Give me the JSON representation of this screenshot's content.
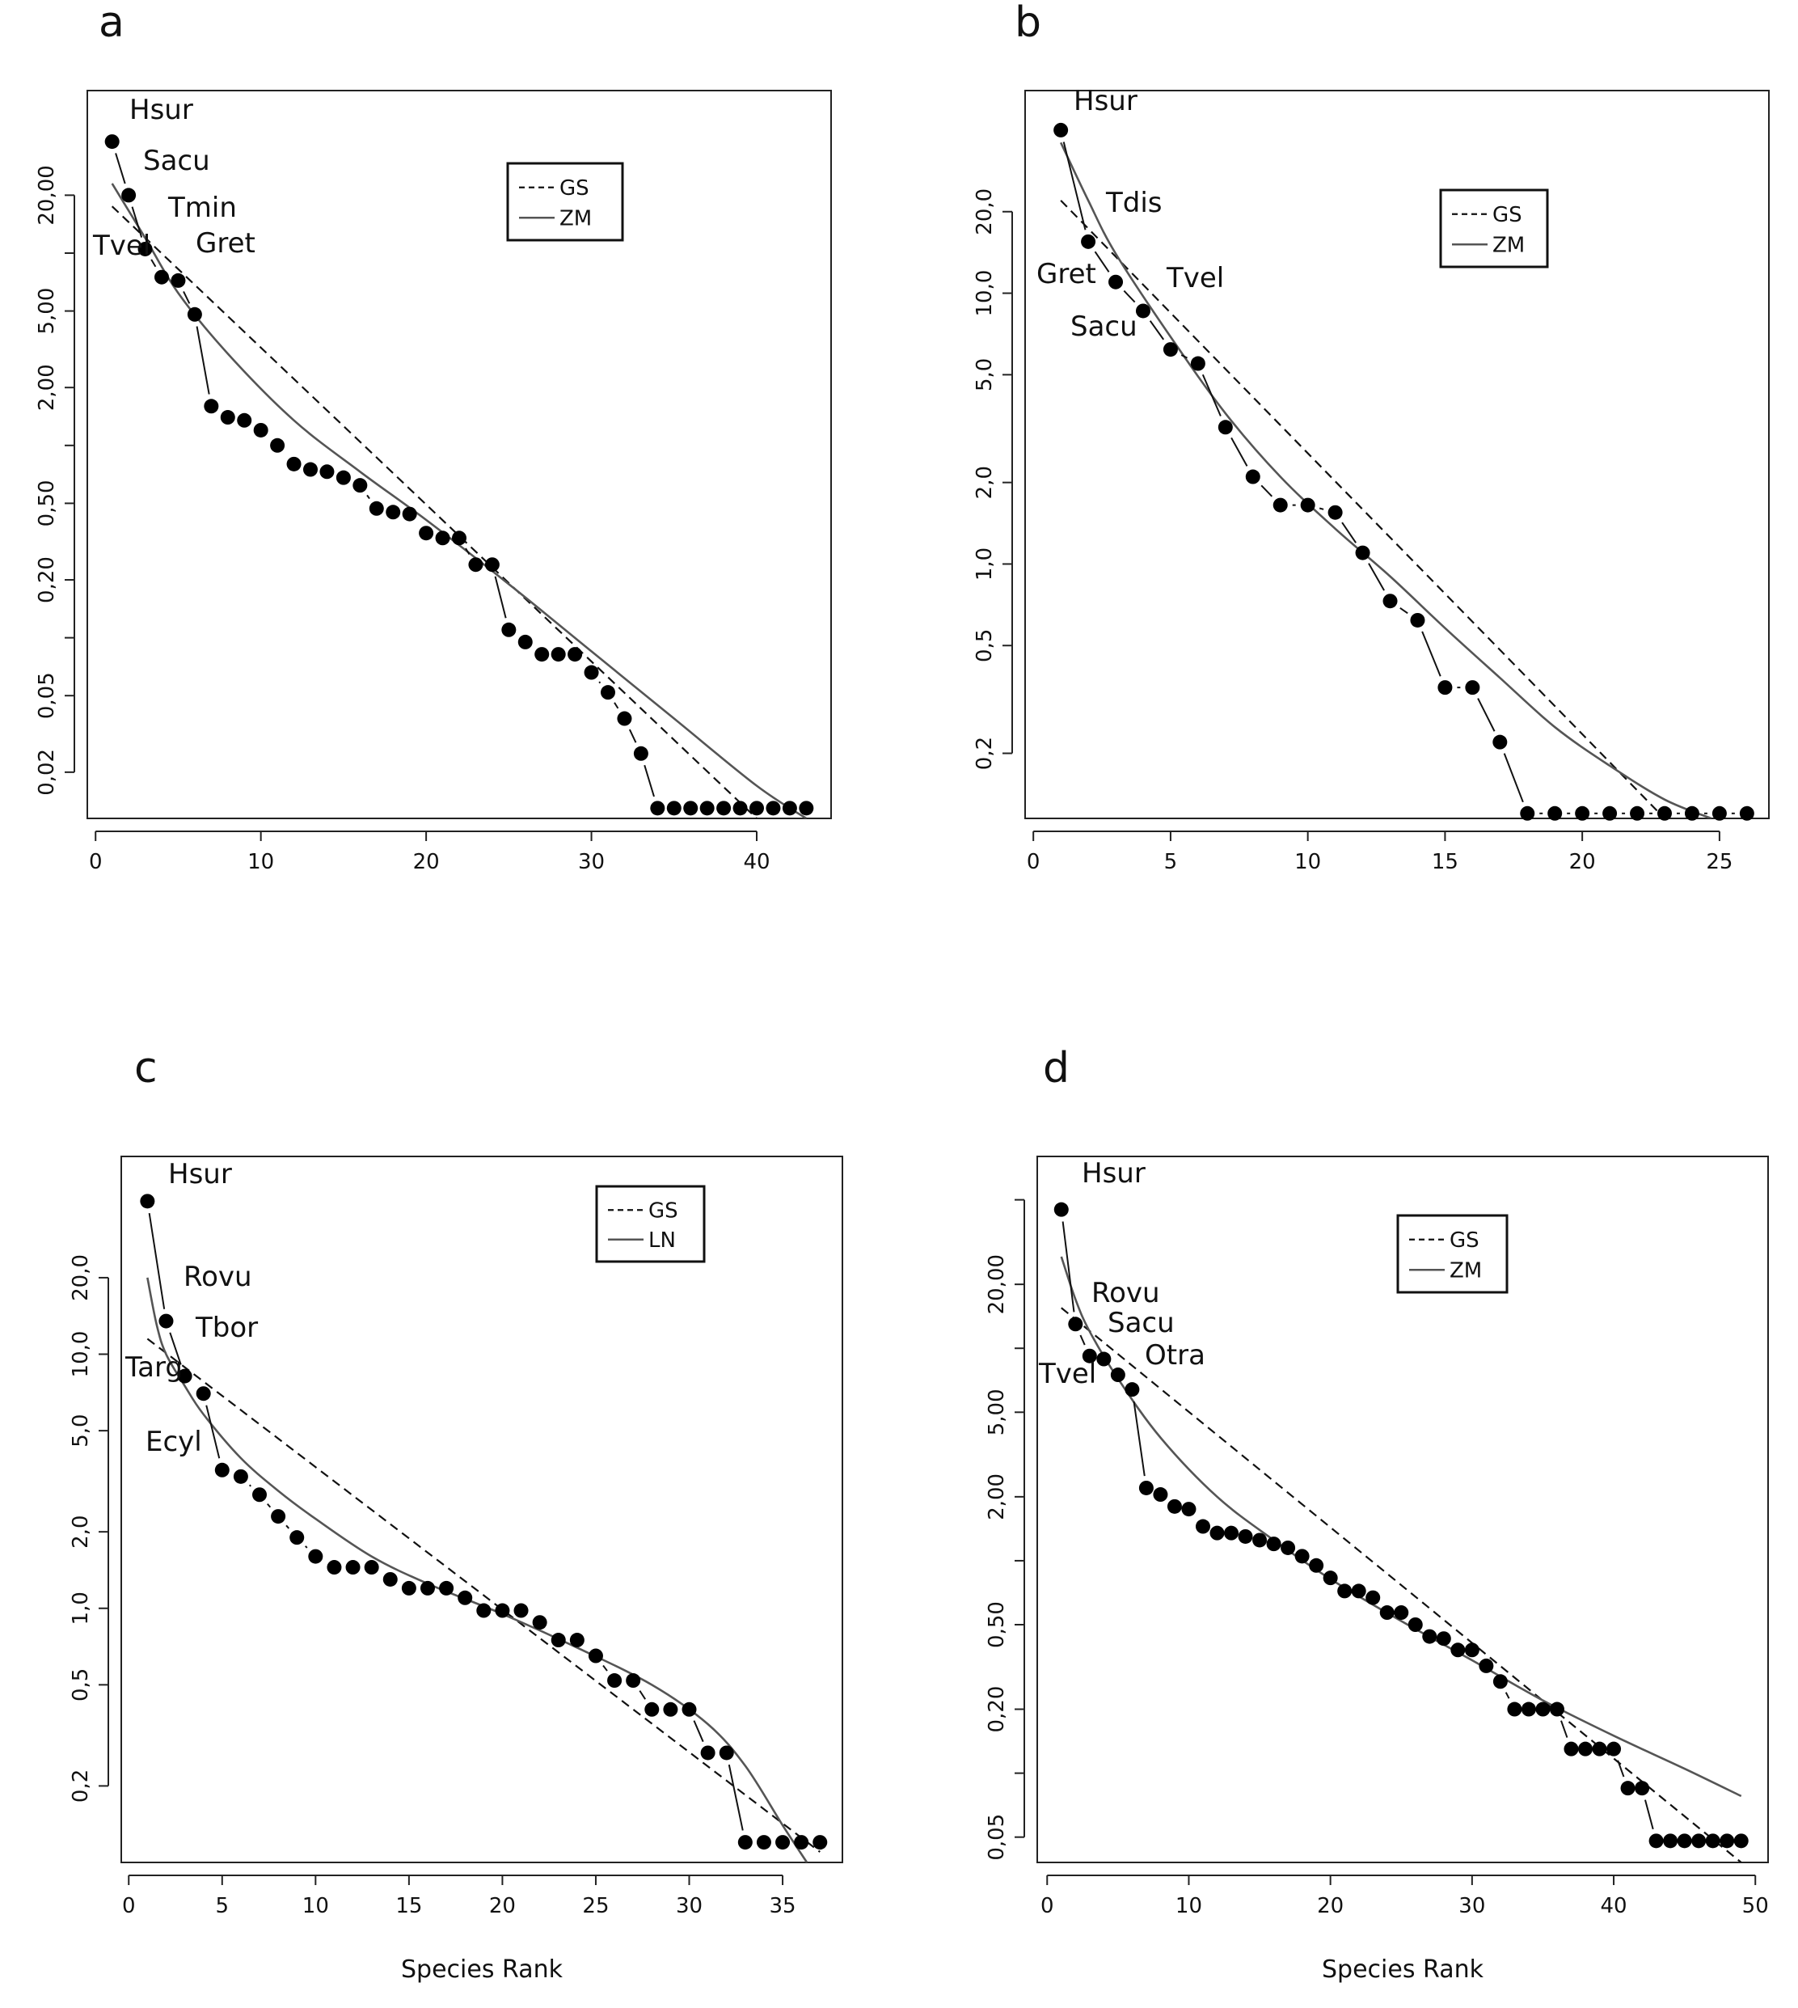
{
  "chart_data": [
    {
      "type": "scatter",
      "panel": "a",
      "xlabel": "",
      "x_ticks": [
        0,
        10,
        20,
        30,
        40
      ],
      "y_ticks": [
        "20,00",
        "5,00",
        "2,00",
        "0,50",
        "0,20",
        "0,05",
        "0,02"
      ],
      "y_tick_values": [
        20,
        5,
        2,
        0.5,
        0.2,
        0.05,
        0.02
      ],
      "y_minor_ticks": [
        10,
        1,
        0.1
      ],
      "xlim": [
        -0.5,
        44.5
      ],
      "ylim": [
        0.0115,
        70
      ],
      "y_scale": "log",
      "legend": [
        "GS",
        "ZM"
      ],
      "species_labels": [
        {
          "rank": 1,
          "text": "Hsur"
        },
        {
          "rank": 2,
          "text": "Sacu"
        },
        {
          "rank": 3,
          "text": "Tmin"
        },
        {
          "rank": 4,
          "text": "Tvel"
        },
        {
          "rank": 5,
          "text": "Gret"
        }
      ],
      "x": [
        1,
        2,
        3,
        4,
        5,
        6,
        7,
        8,
        9,
        10,
        11,
        12,
        13,
        14,
        15,
        16,
        17,
        18,
        19,
        20,
        21,
        22,
        23,
        24,
        25,
        26,
        27,
        28,
        29,
        30,
        31,
        32,
        33,
        34,
        35,
        36,
        37,
        38,
        39,
        40,
        41,
        42,
        43
      ],
      "values": [
        38,
        20,
        10.5,
        7.5,
        7.2,
        4.8,
        1.6,
        1.4,
        1.35,
        1.2,
        1.0,
        0.8,
        0.75,
        0.73,
        0.68,
        0.62,
        0.47,
        0.45,
        0.44,
        0.35,
        0.33,
        0.33,
        0.24,
        0.24,
        0.11,
        0.095,
        0.082,
        0.082,
        0.082,
        0.066,
        0.052,
        0.038,
        0.025,
        0.013,
        0.013,
        0.013,
        0.013,
        0.013,
        0.013,
        0.013,
        0.013,
        0.013,
        0.013
      ],
      "gs_line": {
        "x": [
          1,
          40
        ],
        "y": [
          17.5,
          0.0115
        ]
      },
      "fit_line": {
        "x": [
          1,
          3,
          5,
          8,
          12,
          16,
          20,
          25,
          30,
          35,
          40,
          43
        ],
        "y": [
          23,
          12,
          6.2,
          3.0,
          1.35,
          0.73,
          0.41,
          0.19,
          0.085,
          0.038,
          0.017,
          0.0115
        ]
      }
    },
    {
      "type": "scatter",
      "panel": "b",
      "xlabel": "",
      "x_ticks": [
        0,
        5,
        10,
        15,
        20,
        25
      ],
      "y_ticks": [
        "20,0",
        "10,0",
        "5,0",
        "2,0",
        "1,0",
        "0,5",
        "0,2"
      ],
      "y_tick_values": [
        20,
        10,
        5,
        2,
        1,
        0.5,
        0.2
      ],
      "y_minor_ticks": [],
      "xlim": [
        -0.3,
        26.8
      ],
      "ylim": [
        0.115,
        56
      ],
      "y_scale": "log",
      "legend": [
        "GS",
        "ZM"
      ],
      "species_labels": [
        {
          "rank": 1,
          "text": "Hsur"
        },
        {
          "rank": 2,
          "text": "Tdis"
        },
        {
          "rank": 3,
          "text": "Gret"
        },
        {
          "rank": 4,
          "text": "Tvel"
        },
        {
          "rank": 5,
          "text": "Sacu"
        }
      ],
      "x": [
        1,
        2,
        3,
        4,
        5,
        6,
        7,
        8,
        9,
        10,
        11,
        12,
        13,
        14,
        15,
        16,
        17,
        18,
        19,
        20,
        21,
        22,
        23,
        24,
        25,
        26
      ],
      "values": [
        40,
        15.5,
        11,
        8.6,
        6.2,
        5.5,
        3.2,
        2.1,
        1.65,
        1.65,
        1.55,
        1.1,
        0.73,
        0.62,
        0.35,
        0.35,
        0.22,
        0.12,
        0.12,
        0.12,
        0.12,
        0.12,
        0.12,
        0.12,
        0.12,
        0.12
      ],
      "gs_line": {
        "x": [
          1,
          23
        ],
        "y": [
          22,
          0.115
        ]
      },
      "fit_line": {
        "x": [
          1,
          2,
          3,
          5,
          7,
          9,
          11,
          13,
          15,
          17,
          19,
          21,
          23,
          24.7
        ],
        "y": [
          36,
          22,
          14,
          6.9,
          3.6,
          2.1,
          1.35,
          0.9,
          0.58,
          0.38,
          0.25,
          0.18,
          0.135,
          0.115
        ]
      }
    },
    {
      "type": "scatter",
      "panel": "c",
      "xlabel": "Species Rank",
      "x_ticks": [
        0,
        5,
        10,
        15,
        20,
        25,
        30,
        35
      ],
      "y_ticks": [
        "20,0",
        "10,0",
        "5,0",
        "2,0",
        "1,0",
        "0,5",
        "0,2"
      ],
      "y_tick_values": [
        20,
        10,
        5,
        2,
        1,
        0.5,
        0.2
      ],
      "y_minor_ticks": [],
      "xlim": [
        -0.4,
        38.2
      ],
      "ylim": [
        0.1,
        60
      ],
      "y_scale": "log",
      "legend": [
        "GS",
        "LN"
      ],
      "species_labels": [
        {
          "rank": 1,
          "text": "Hsur"
        },
        {
          "rank": 2,
          "text": "Rovu"
        },
        {
          "rank": 3,
          "text": "Tbor"
        },
        {
          "rank": 4,
          "text": "Targ"
        },
        {
          "rank": 5,
          "text": "Ecyl"
        }
      ],
      "x": [
        1,
        2,
        3,
        4,
        5,
        6,
        7,
        8,
        9,
        10,
        11,
        12,
        13,
        14,
        15,
        16,
        17,
        18,
        19,
        20,
        21,
        22,
        23,
        24,
        25,
        26,
        27,
        28,
        29,
        30,
        31,
        32,
        33,
        34,
        35,
        36,
        37
      ],
      "values": [
        40,
        13.5,
        8.2,
        7.0,
        3.5,
        3.3,
        2.8,
        2.3,
        1.9,
        1.6,
        1.45,
        1.45,
        1.45,
        1.3,
        1.2,
        1.2,
        1.2,
        1.1,
        0.98,
        0.98,
        0.98,
        0.88,
        0.75,
        0.75,
        0.65,
        0.52,
        0.52,
        0.4,
        0.4,
        0.4,
        0.27,
        0.27,
        0.12,
        0.12,
        0.12,
        0.12,
        0.12
      ],
      "gs_line": {
        "x": [
          1,
          37
        ],
        "y": [
          11.5,
          0.11
        ]
      },
      "fit_line": {
        "x": [
          1,
          1.5,
          2,
          3,
          4,
          6,
          8,
          10,
          13,
          16,
          20,
          24,
          28,
          31,
          33,
          35,
          36.3
        ],
        "y": [
          20,
          13,
          10,
          7.5,
          5.8,
          3.9,
          2.9,
          2.25,
          1.6,
          1.25,
          0.95,
          0.7,
          0.5,
          0.35,
          0.24,
          0.14,
          0.1
        ]
      }
    },
    {
      "type": "scatter",
      "panel": "d",
      "xlabel": "Species Rank",
      "x_ticks": [
        0,
        10,
        20,
        30,
        40,
        50
      ],
      "y_ticks": [
        "20,00",
        "5,00",
        "2,00",
        "0,50",
        "0,20",
        "0,05"
      ],
      "y_tick_values": [
        20,
        5,
        2,
        0.5,
        0.2,
        0.05
      ],
      "y_minor_ticks": [
        50,
        10,
        1,
        0.1
      ],
      "xlim": [
        -0.7,
        50.9
      ],
      "ylim": [
        0.038,
        80
      ],
      "y_scale": "log",
      "legend": [
        "GS",
        "ZM"
      ],
      "species_labels": [
        {
          "rank": 1,
          "text": "Hsur"
        },
        {
          "rank": 2,
          "text": "Rovu"
        },
        {
          "rank": 4,
          "text": "Sacu"
        },
        {
          "rank": 5,
          "text": "Tvel"
        },
        {
          "rank": 6,
          "text": "Otra"
        }
      ],
      "x": [
        1,
        2,
        3,
        4,
        5,
        6,
        7,
        8,
        9,
        10,
        11,
        12,
        13,
        14,
        15,
        16,
        17,
        18,
        19,
        20,
        21,
        22,
        23,
        24,
        25,
        26,
        27,
        28,
        29,
        30,
        31,
        32,
        33,
        34,
        35,
        36,
        37,
        38,
        39,
        40,
        41,
        42,
        43,
        44,
        45,
        46,
        47,
        48,
        49
      ],
      "values": [
        45,
        13,
        9.2,
        8.9,
        7.5,
        6.4,
        2.2,
        2.05,
        1.8,
        1.75,
        1.45,
        1.35,
        1.35,
        1.3,
        1.25,
        1.2,
        1.15,
        1.05,
        0.95,
        0.83,
        0.72,
        0.72,
        0.67,
        0.57,
        0.57,
        0.5,
        0.44,
        0.43,
        0.38,
        0.38,
        0.32,
        0.27,
        0.2,
        0.2,
        0.2,
        0.2,
        0.13,
        0.13,
        0.13,
        0.13,
        0.085,
        0.085,
        0.048,
        0.048,
        0.048,
        0.048,
        0.048,
        0.048,
        0.048
      ],
      "gs_line": {
        "x": [
          1,
          49
        ],
        "y": [
          15.5,
          0.038
        ]
      },
      "fit_line": {
        "x": [
          1,
          2,
          3,
          5,
          8,
          12,
          16,
          20,
          25,
          30,
          35,
          40,
          45,
          49
        ],
        "y": [
          27,
          17,
          12,
          7.2,
          3.8,
          2.0,
          1.25,
          0.82,
          0.52,
          0.34,
          0.22,
          0.15,
          0.105,
          0.078
        ]
      }
    }
  ]
}
